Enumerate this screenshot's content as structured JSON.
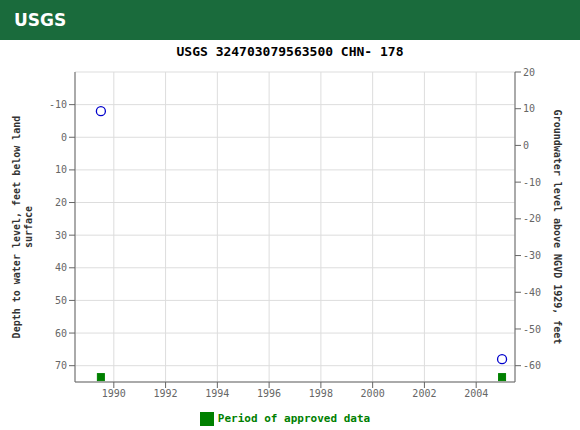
{
  "chart_data": {
    "type": "scatter",
    "title": "USGS 324703079563500 CHN- 178",
    "annotations": [
      "USGS"
    ],
    "ylabel": "Depth to water level, feet below land\nsurface",
    "y2label": "Groundwater level above NGVD 1929, feet",
    "xlim": [
      1988.5,
      2005.5
    ],
    "xticks": [
      1990,
      1992,
      1994,
      1996,
      1998,
      2000,
      2002,
      2004
    ],
    "ylim": [
      75,
      -20
    ],
    "yticks": [
      -10,
      0,
      10,
      20,
      30,
      40,
      50,
      60,
      70
    ],
    "y2lim": [
      -64.44444444444444,
      20
    ],
    "y2ticks": [
      20,
      10,
      0,
      -10,
      -20,
      -30,
      -40,
      -50,
      -60
    ],
    "grid": true,
    "legend": "bottom",
    "series": [
      {
        "marker": "circle",
        "color": "#0000cc",
        "x": [
          1989.5,
          2005.0
        ],
        "values": [
          -8.0,
          68.0
        ]
      },
      {
        "name": "Period of approved data",
        "marker": "square",
        "color": "#008000",
        "x": [
          1989.5,
          2005.0
        ],
        "values": [
          73.5,
          73.5
        ]
      }
    ]
  }
}
